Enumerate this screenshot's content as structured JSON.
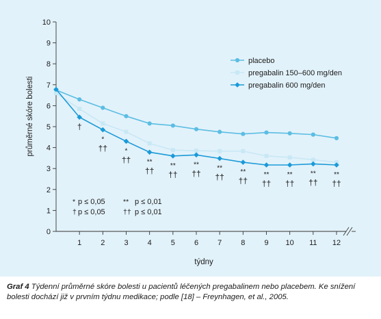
{
  "chart_data": {
    "type": "line",
    "ylabel": "průměrné skóre bolesti",
    "xlabel": "týdny",
    "ylim": [
      0,
      10
    ],
    "y_ticks": [
      "0",
      "1",
      "2",
      "3",
      "4",
      "5",
      "6",
      "7",
      "8",
      "9",
      "10"
    ],
    "x": [
      0,
      1,
      2,
      3,
      4,
      5,
      6,
      7,
      8,
      9,
      10,
      11,
      12
    ],
    "x_tick_labels": [
      "",
      "1",
      "2",
      "3",
      "4",
      "5",
      "6",
      "7",
      "8",
      "9",
      "10",
      "11",
      "12"
    ],
    "axis_break": true,
    "legend_position": "top-right",
    "series": [
      {
        "name": "placebo",
        "color": "#5bbde3",
        "marker": "circle",
        "values": [
          6.75,
          6.3,
          5.9,
          5.5,
          5.15,
          5.05,
          4.88,
          4.75,
          4.65,
          4.72,
          4.68,
          4.62,
          4.45
        ]
      },
      {
        "name": "pregabalin 150–600 mg/den",
        "color": "#c8e8f5",
        "marker": "square",
        "values": [
          6.6,
          5.85,
          5.15,
          4.75,
          4.2,
          3.88,
          3.85,
          3.83,
          3.83,
          3.6,
          3.53,
          3.42,
          3.3
        ]
      },
      {
        "name": "pregabalin 600 mg/den",
        "color": "#1a9ad8",
        "marker": "diamond",
        "values": [
          6.78,
          5.45,
          4.85,
          4.3,
          3.78,
          3.6,
          3.65,
          3.48,
          3.3,
          3.17,
          3.17,
          3.22,
          3.17
        ]
      }
    ],
    "annotations": [
      {
        "x": 1,
        "star": "",
        "dagger": "†"
      },
      {
        "x": 2,
        "star": "*",
        "dagger": "††"
      },
      {
        "x": 3,
        "star": "*",
        "dagger": "††"
      },
      {
        "x": 4,
        "star": "**",
        "dagger": "††"
      },
      {
        "x": 5,
        "star": "**",
        "dagger": "††"
      },
      {
        "x": 6,
        "star": "**",
        "dagger": "††"
      },
      {
        "x": 7,
        "star": "**",
        "dagger": "††"
      },
      {
        "x": 8,
        "star": "**",
        "dagger": "††"
      },
      {
        "x": 9,
        "star": "**",
        "dagger": "††"
      },
      {
        "x": 10,
        "star": "**",
        "dagger": "††"
      },
      {
        "x": 11,
        "star": "**",
        "dagger": "††"
      },
      {
        "x": 12,
        "star": "**",
        "dagger": "††"
      }
    ],
    "significance_key": [
      {
        "symbol": "*",
        "text": "p ≤ 0,05"
      },
      {
        "symbol": "†",
        "text": "p ≤ 0,05"
      },
      {
        "symbol": "**",
        "text": "p ≤ 0,01"
      },
      {
        "symbol": "††",
        "text": "p ≤ 0,01"
      }
    ]
  },
  "caption": {
    "label": "Graf 4",
    "text": "  Týdenní průměrné skóre bolesti u pacientů léčených pregabalinem nebo placebem. Ke snížení bolesti dochází již v prvním týdnu medikace; podle [18] – Freynhagen, et al., 2005."
  },
  "colors": {
    "panel": "#e2f2fa",
    "axis": "#333333",
    "text": "#1a1a1a"
  }
}
